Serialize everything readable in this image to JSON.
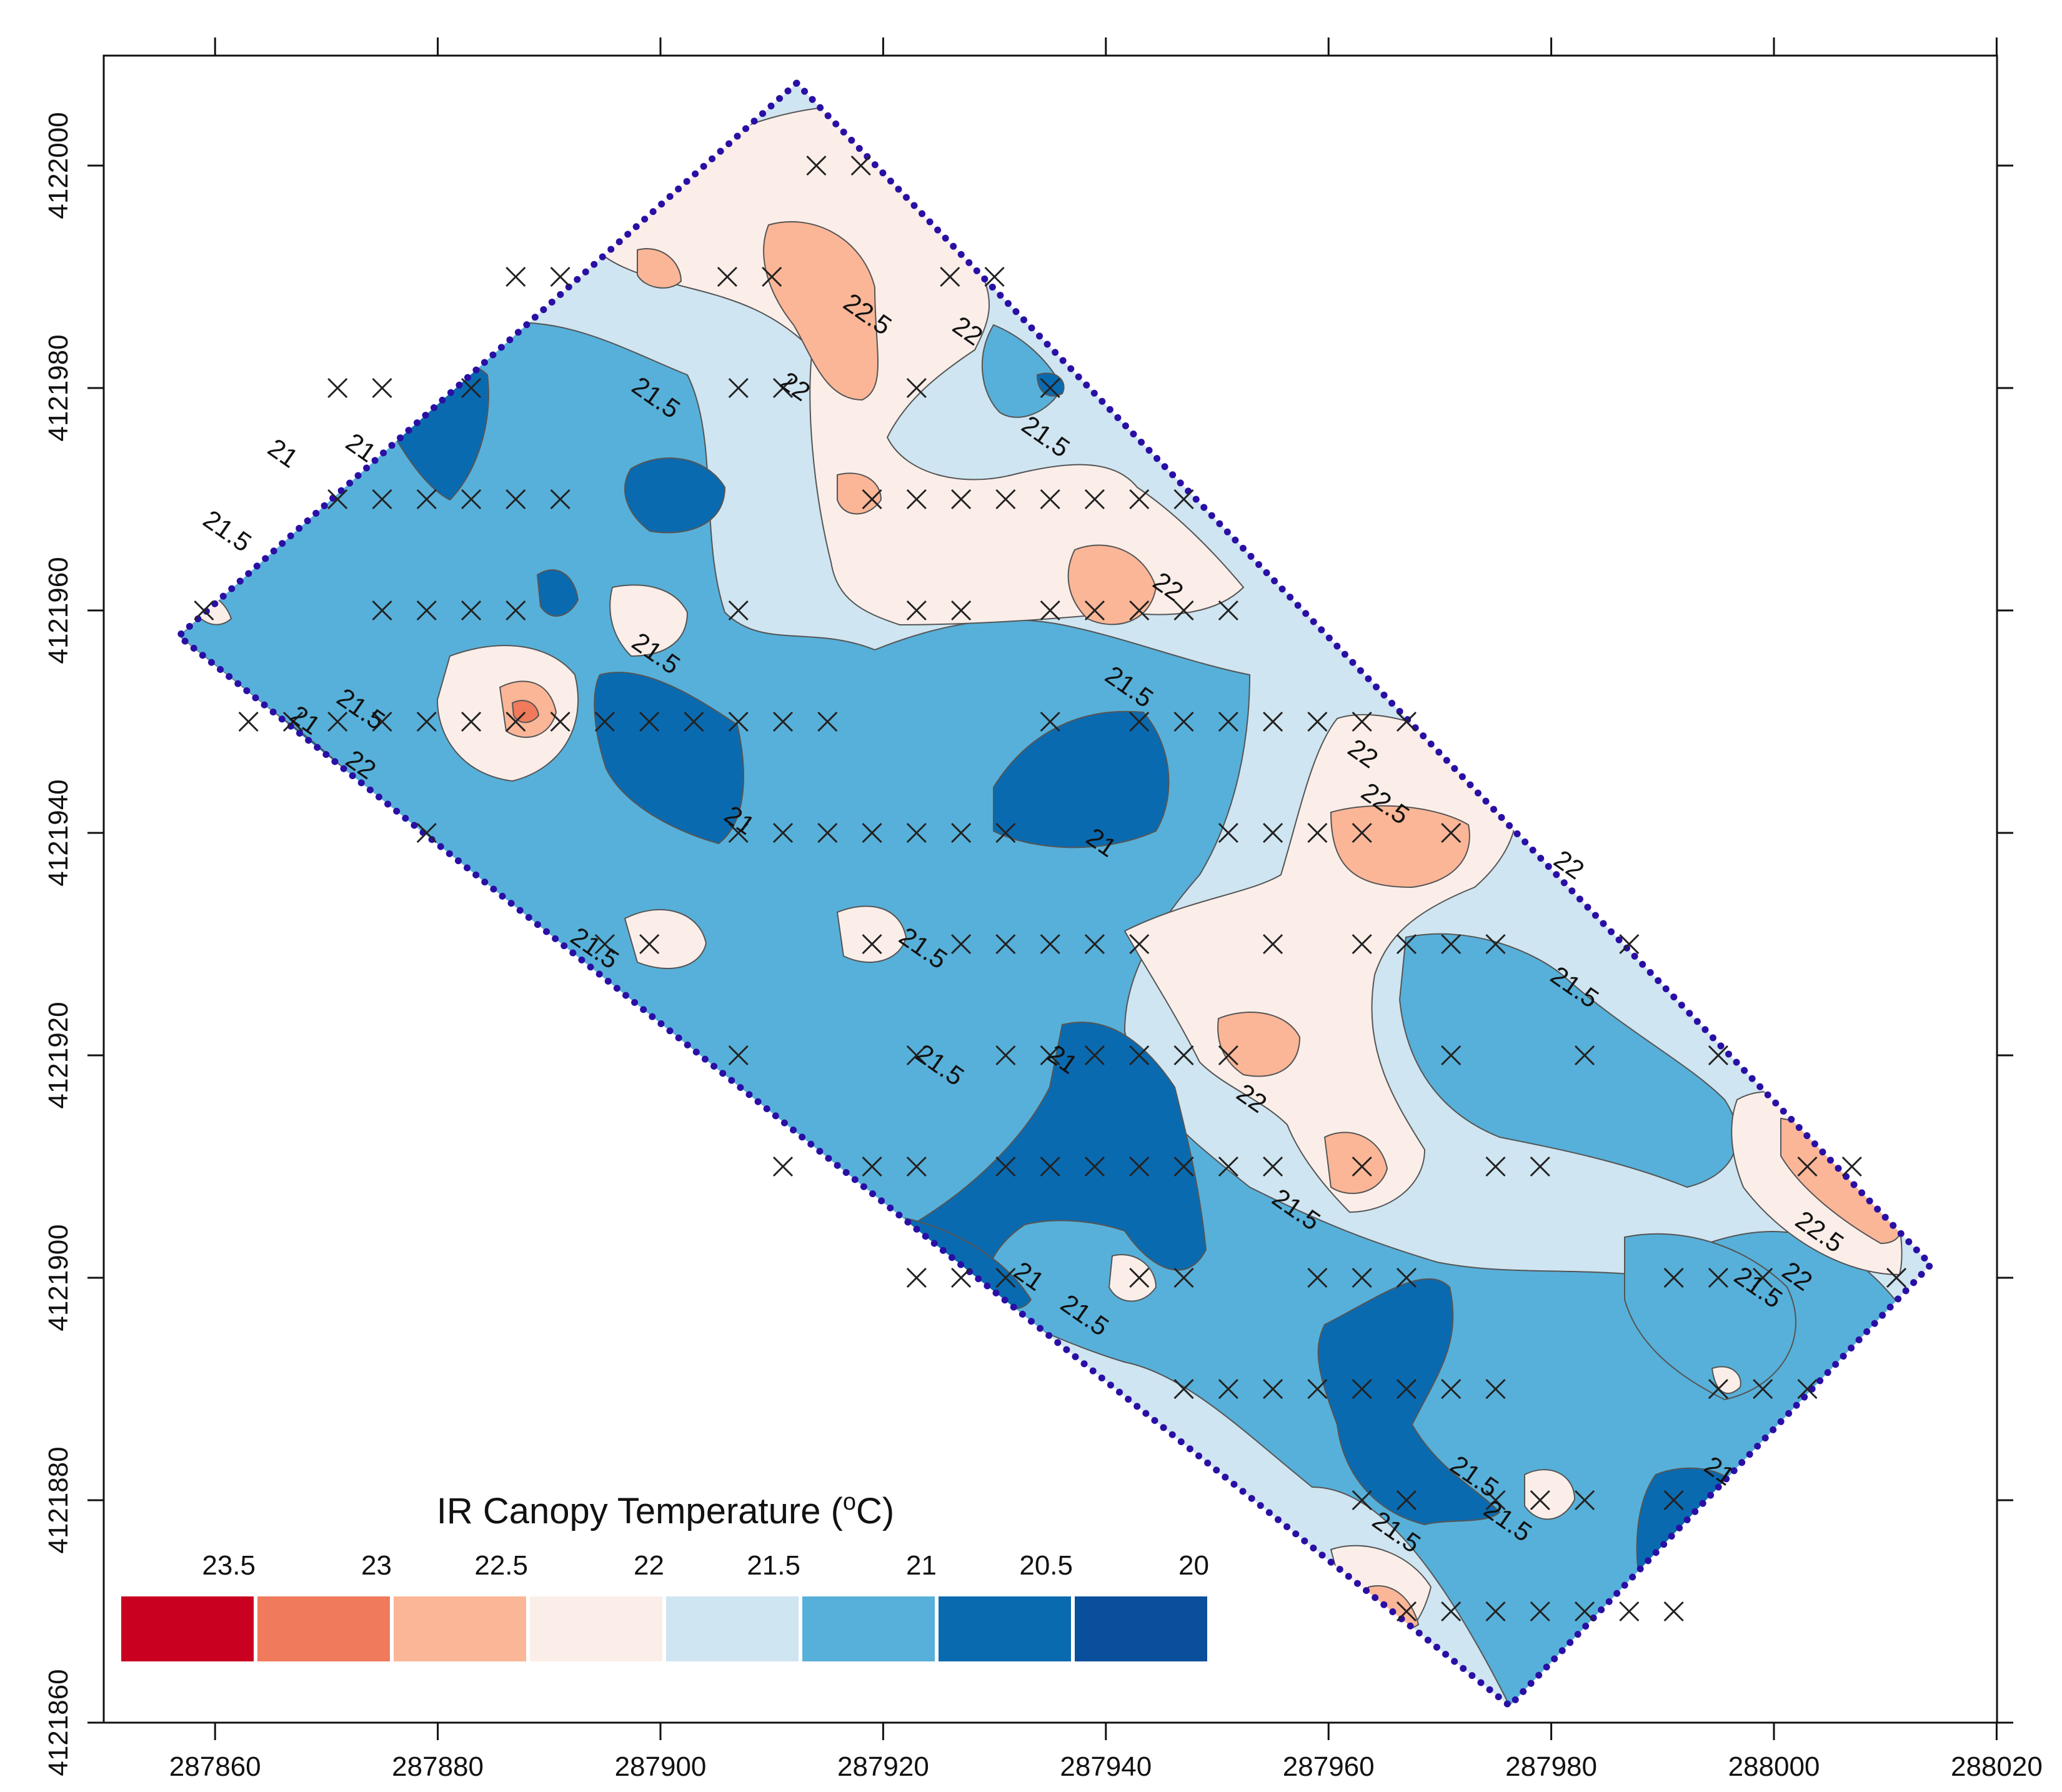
{
  "map": {
    "type": "contour",
    "x_axis": {
      "ticks": [
        "287860",
        "287880",
        "287900",
        "287920",
        "287940",
        "287960",
        "287980",
        "288000",
        "288020"
      ],
      "range": [
        287850,
        288020
      ]
    },
    "y_axis": {
      "ticks": [
        "4121860",
        "4121880",
        "4121900",
        "4121920",
        "4121940",
        "4121960",
        "4121980",
        "4122000"
      ],
      "range": [
        4121860,
        4122010
      ]
    },
    "field_boundary_color": "#2a0fa5",
    "legend": {
      "title": "IR Canopy Temperature (",
      "title_sup": "o",
      "title_end": "C)",
      "levels": [
        "23.5",
        "23",
        "22.5",
        "22",
        "21.5",
        "21",
        "20.5",
        "20"
      ],
      "colors": [
        "#ca0020",
        "#ef7a5c",
        "#fbb697",
        "#fbeee9",
        "#cfe5f1",
        "#57b0d9",
        "#0a6ab0",
        "#0a4f9c"
      ]
    },
    "contour_labels": [
      {
        "text": "22.5",
        "e": 287918.5,
        "n": 4121986.5
      },
      {
        "text": "22",
        "e": 287927.5,
        "n": 4121985
      },
      {
        "text": "22",
        "e": 287912,
        "n": 4121980
      },
      {
        "text": "21.5",
        "e": 287899.5,
        "n": 4121979
      },
      {
        "text": "21",
        "e": 287866,
        "n": 4121974
      },
      {
        "text": "21",
        "e": 287873,
        "n": 4121974.5
      },
      {
        "text": "21.5",
        "e": 287934.5,
        "n": 4121975.5
      },
      {
        "text": "21.5",
        "e": 287861,
        "n": 4121967
      },
      {
        "text": "22",
        "e": 287945.5,
        "n": 4121962
      },
      {
        "text": "21.5",
        "e": 287899.5,
        "n": 4121956
      },
      {
        "text": "21.5",
        "e": 287942,
        "n": 4121953
      },
      {
        "text": "21.5",
        "e": 287873,
        "n": 4121951
      },
      {
        "text": "21",
        "e": 287868,
        "n": 4121950
      },
      {
        "text": "22",
        "e": 287873,
        "n": 4121946
      },
      {
        "text": "22",
        "e": 287963,
        "n": 4121947
      },
      {
        "text": "21",
        "e": 287907,
        "n": 4121941
      },
      {
        "text": "22.5",
        "e": 287965,
        "n": 4121942.5
      },
      {
        "text": "21",
        "e": 287939.5,
        "n": 4121939
      },
      {
        "text": "22",
        "e": 287981.5,
        "n": 4121937
      },
      {
        "text": "21.5",
        "e": 287894,
        "n": 4121929.5
      },
      {
        "text": "21.5",
        "e": 287923.5,
        "n": 4121929.5
      },
      {
        "text": "21.5",
        "e": 287982,
        "n": 4121926
      },
      {
        "text": "21.5",
        "e": 287925,
        "n": 4121919
      },
      {
        "text": "21",
        "e": 287936,
        "n": 4121919.5
      },
      {
        "text": "22",
        "e": 287953,
        "n": 4121916
      },
      {
        "text": "21.5",
        "e": 287957,
        "n": 4121906
      },
      {
        "text": "22.5",
        "e": 288004,
        "n": 4121904
      },
      {
        "text": "21",
        "e": 287933,
        "n": 4121900
      },
      {
        "text": "22",
        "e": 288002,
        "n": 4121900
      },
      {
        "text": "21.5",
        "e": 287998.5,
        "n": 4121899
      },
      {
        "text": "21.5",
        "e": 287938,
        "n": 4121896.5
      },
      {
        "text": "21.5",
        "e": 287973,
        "n": 4121882
      },
      {
        "text": "21.5",
        "e": 287976,
        "n": 4121878
      },
      {
        "text": "21",
        "e": 287995,
        "n": 4121882.5
      },
      {
        "text": "21.5",
        "e": 287966,
        "n": 4121877
      }
    ],
    "sample_points": [
      [
        287914,
        4122000
      ],
      [
        287918,
        4122000
      ],
      [
        287887,
        4121990
      ],
      [
        287891,
        4121990
      ],
      [
        287906,
        4121990
      ],
      [
        287910,
        4121990
      ],
      [
        287926,
        4121990
      ],
      [
        287930,
        4121990
      ],
      [
        287871,
        4121980
      ],
      [
        287875,
        4121980
      ],
      [
        287883,
        4121980
      ],
      [
        287907,
        4121980
      ],
      [
        287911,
        4121980
      ],
      [
        287923,
        4121980
      ],
      [
        287935,
        4121980
      ],
      [
        287871,
        4121970
      ],
      [
        287875,
        4121970
      ],
      [
        287879,
        4121970
      ],
      [
        287883,
        4121970
      ],
      [
        287887,
        4121970
      ],
      [
        287891,
        4121970
      ],
      [
        287919,
        4121970
      ],
      [
        287923,
        4121970
      ],
      [
        287927,
        4121970
      ],
      [
        287931,
        4121970
      ],
      [
        287935,
        4121970
      ],
      [
        287939,
        4121970
      ],
      [
        287943,
        4121970
      ],
      [
        287947,
        4121970
      ],
      [
        287859,
        4121960
      ],
      [
        287875,
        4121960
      ],
      [
        287879,
        4121960
      ],
      [
        287883,
        4121960
      ],
      [
        287887,
        4121960
      ],
      [
        287907,
        4121960
      ],
      [
        287923,
        4121960
      ],
      [
        287927,
        4121960
      ],
      [
        287935,
        4121960
      ],
      [
        287939,
        4121960
      ],
      [
        287943,
        4121960
      ],
      [
        287947,
        4121960
      ],
      [
        287951,
        4121960
      ],
      [
        287863,
        4121950
      ],
      [
        287867,
        4121950
      ],
      [
        287871,
        4121950
      ],
      [
        287875,
        4121950
      ],
      [
        287879,
        4121950
      ],
      [
        287883,
        4121950
      ],
      [
        287887,
        4121950
      ],
      [
        287891,
        4121950
      ],
      [
        287895,
        4121950
      ],
      [
        287899,
        4121950
      ],
      [
        287903,
        4121950
      ],
      [
        287907,
        4121950
      ],
      [
        287911,
        4121950
      ],
      [
        287915,
        4121950
      ],
      [
        287935,
        4121950
      ],
      [
        287943,
        4121950
      ],
      [
        287947,
        4121950
      ],
      [
        287951,
        4121950
      ],
      [
        287955,
        4121950
      ],
      [
        287959,
        4121950
      ],
      [
        287963,
        4121950
      ],
      [
        287967,
        4121950
      ],
      [
        287879,
        4121940
      ],
      [
        287907,
        4121940
      ],
      [
        287911,
        4121940
      ],
      [
        287915,
        4121940
      ],
      [
        287919,
        4121940
      ],
      [
        287923,
        4121940
      ],
      [
        287927,
        4121940
      ],
      [
        287931,
        4121940
      ],
      [
        287951,
        4121940
      ],
      [
        287955,
        4121940
      ],
      [
        287959,
        4121940
      ],
      [
        287963,
        4121940
      ],
      [
        287971,
        4121940
      ],
      [
        287895,
        4121930
      ],
      [
        287899,
        4121930
      ],
      [
        287919,
        4121930
      ],
      [
        287927,
        4121930
      ],
      [
        287931,
        4121930
      ],
      [
        287935,
        4121930
      ],
      [
        287939,
        4121930
      ],
      [
        287943,
        4121930
      ],
      [
        287955,
        4121930
      ],
      [
        287963,
        4121930
      ],
      [
        287967,
        4121930
      ],
      [
        287971,
        4121930
      ],
      [
        287975,
        4121930
      ],
      [
        287987,
        4121930
      ],
      [
        287907,
        4121920
      ],
      [
        287923,
        4121920
      ],
      [
        287931,
        4121920
      ],
      [
        287935,
        4121920
      ],
      [
        287939,
        4121920
      ],
      [
        287943,
        4121920
      ],
      [
        287947,
        4121920
      ],
      [
        287951,
        4121920
      ],
      [
        287971,
        4121920
      ],
      [
        287983,
        4121920
      ],
      [
        287995,
        4121920
      ],
      [
        287911,
        4121910
      ],
      [
        287919,
        4121910
      ],
      [
        287923,
        4121910
      ],
      [
        287931,
        4121910
      ],
      [
        287935,
        4121910
      ],
      [
        287939,
        4121910
      ],
      [
        287943,
        4121910
      ],
      [
        287947,
        4121910
      ],
      [
        287951,
        4121910
      ],
      [
        287955,
        4121910
      ],
      [
        287963,
        4121910
      ],
      [
        287975,
        4121910
      ],
      [
        287979,
        4121910
      ],
      [
        288003,
        4121910
      ],
      [
        288007,
        4121910
      ],
      [
        287923,
        4121900
      ],
      [
        287927,
        4121900
      ],
      [
        287931,
        4121900
      ],
      [
        287943,
        4121900
      ],
      [
        287947,
        4121900
      ],
      [
        287959,
        4121900
      ],
      [
        287963,
        4121900
      ],
      [
        287967,
        4121900
      ],
      [
        287991,
        4121900
      ],
      [
        287995,
        4121900
      ],
      [
        287999,
        4121900
      ],
      [
        288011,
        4121900
      ],
      [
        287947,
        4121890
      ],
      [
        287951,
        4121890
      ],
      [
        287955,
        4121890
      ],
      [
        287959,
        4121890
      ],
      [
        287963,
        4121890
      ],
      [
        287967,
        4121890
      ],
      [
        287971,
        4121890
      ],
      [
        287975,
        4121890
      ],
      [
        287995,
        4121890
      ],
      [
        287999,
        4121890
      ],
      [
        288003,
        4121890
      ],
      [
        287963,
        4121880
      ],
      [
        287967,
        4121880
      ],
      [
        287975,
        4121880
      ],
      [
        287979,
        4121880
      ],
      [
        287983,
        4121880
      ],
      [
        287991,
        4121880
      ],
      [
        287967,
        4121870
      ],
      [
        287971,
        4121870
      ],
      [
        287975,
        4121870
      ],
      [
        287979,
        4121870
      ],
      [
        287983,
        4121870
      ],
      [
        287987,
        4121870
      ],
      [
        287991,
        4121870
      ]
    ]
  }
}
